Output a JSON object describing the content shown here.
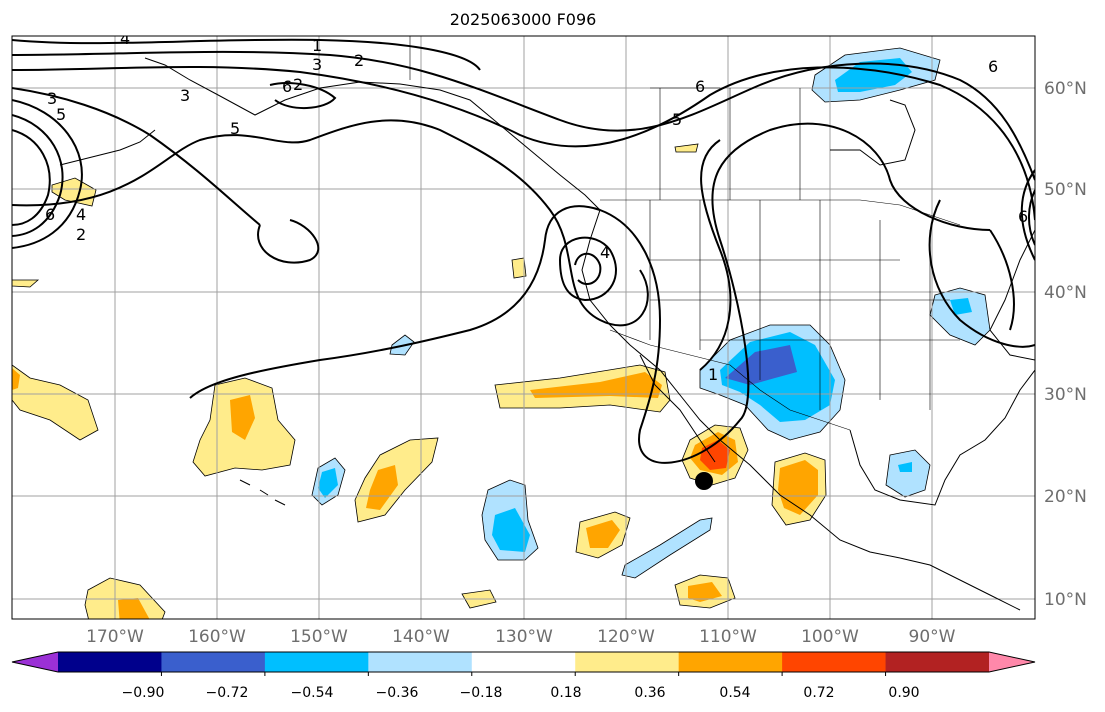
{
  "title": "2025063000 F096",
  "lon_labels": [
    "170°W",
    "160°W",
    "150°W",
    "140°W",
    "130°W",
    "120°W",
    "110°W",
    "100°W",
    "90°W"
  ],
  "lat_labels": [
    "60°N",
    "50°N",
    "40°N",
    "30°N",
    "20°N",
    "10°N"
  ],
  "colorbar": {
    "colors": [
      "#9b30d6",
      "#00008c",
      "#3a5fcd",
      "#00bfff",
      "#b0e2ff",
      "#ffffff",
      "#ffec8b",
      "#ffa500",
      "#ff4500",
      "#b22222",
      "#ff88aa"
    ],
    "tick_labels": [
      "−0.90",
      "−0.72",
      "−0.54",
      "−0.36",
      "−0.18",
      "0.18",
      "0.36",
      "0.54",
      "0.72",
      "0.90"
    ]
  },
  "contour_labels": [
    "4",
    "1",
    "2",
    "3",
    "2",
    "3",
    "5",
    "6",
    "3",
    "5",
    "6",
    "6",
    "4",
    "2",
    "5",
    "6",
    "6",
    "4",
    "1"
  ],
  "colors": {
    "frame": "#000000",
    "grid": "#a0a0a0",
    "light_yellow": "#ffec8b",
    "orange": "#ffa500",
    "red_orange": "#ff4500",
    "light_blue": "#b0e2ff",
    "deep_sky_blue": "#00bfff",
    "royal_blue": "#3a5fcd"
  },
  "marker": "storm-center-dot"
}
